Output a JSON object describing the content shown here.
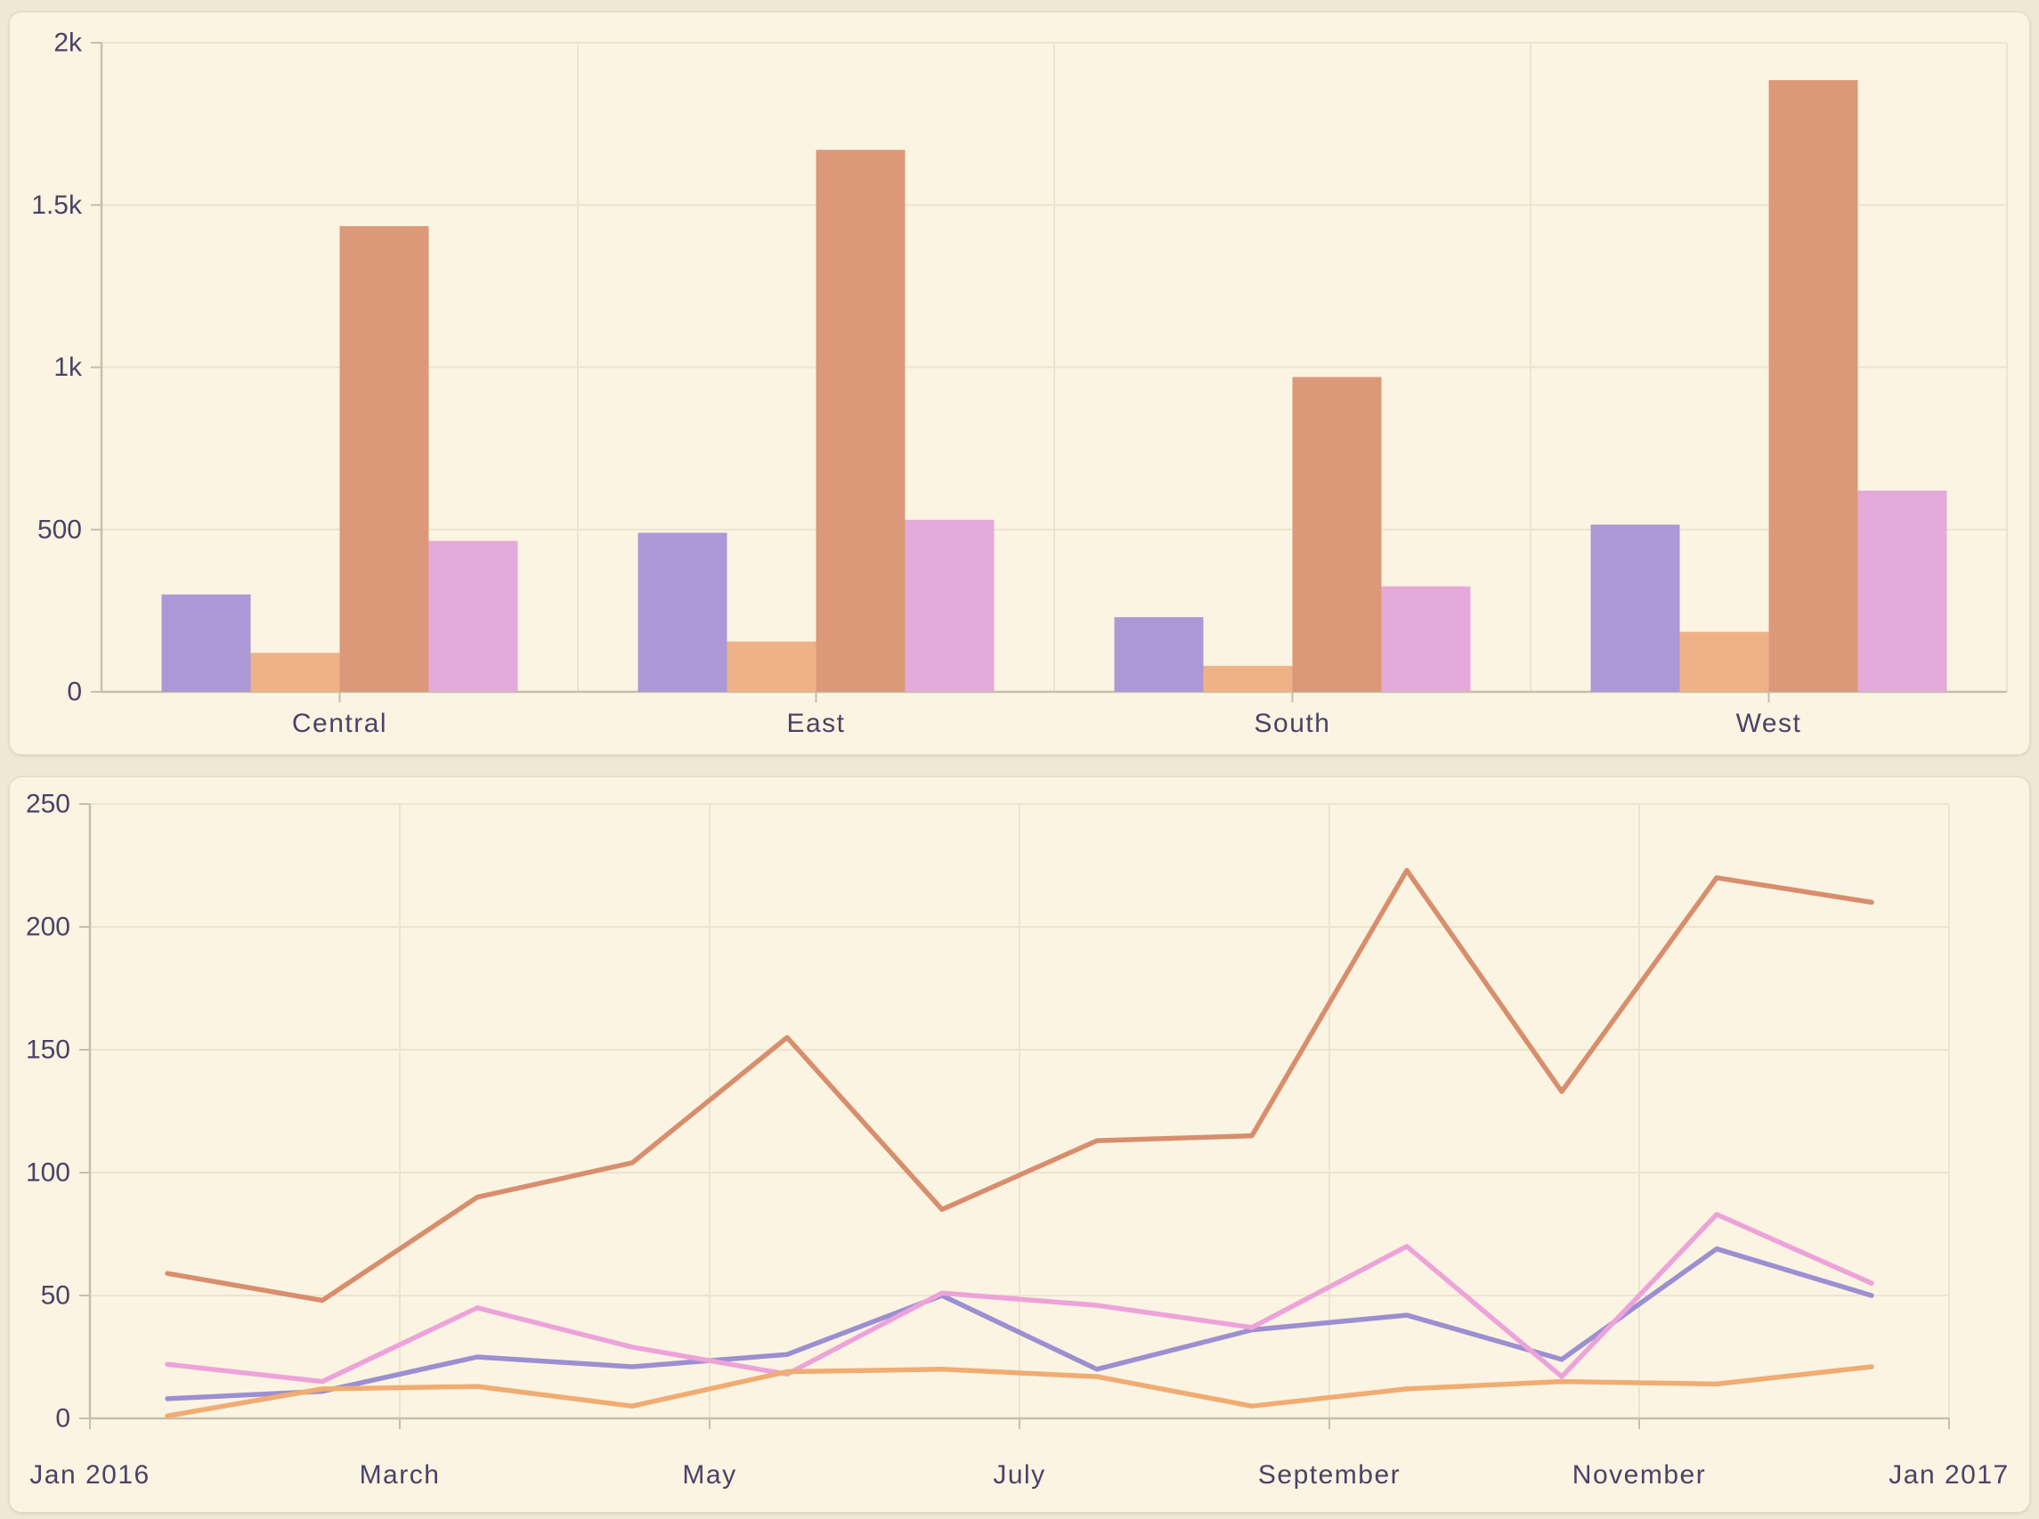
{
  "page": {
    "background_color": "#efe8d3",
    "card_background_color": "#fbf4e2",
    "gridline_color": "#ede4ce",
    "axis_color": "#c6bfaa",
    "tick_text_color": "#4b4267"
  },
  "chart_data": [
    {
      "type": "bar",
      "title": "",
      "xlabel": "",
      "ylabel": "",
      "grid": true,
      "legend": false,
      "categories": [
        "Central",
        "East",
        "South",
        "West"
      ],
      "series": [
        {
          "name": "purple",
          "color": "#ab98d5",
          "values": [
            300,
            490,
            230,
            515
          ]
        },
        {
          "name": "light-orange",
          "color": "#efb287",
          "values": [
            120,
            155,
            80,
            185
          ]
        },
        {
          "name": "salmon",
          "color": "#dc9979",
          "values": [
            1435,
            1670,
            970,
            1885
          ]
        },
        {
          "name": "pink",
          "color": "#e4aad9",
          "values": [
            465,
            530,
            325,
            620
          ]
        }
      ],
      "ylim": [
        0,
        2000
      ],
      "yticks": [
        {
          "value": 0,
          "label": "0"
        },
        {
          "value": 500,
          "label": "500"
        },
        {
          "value": 1000,
          "label": "1k"
        },
        {
          "value": 1500,
          "label": "1.5k"
        },
        {
          "value": 2000,
          "label": "2k"
        }
      ]
    },
    {
      "type": "line",
      "title": "",
      "xlabel": "",
      "ylabel": "",
      "grid": true,
      "legend": false,
      "x_range_months": 12,
      "point_offset_months": 0.5,
      "x_ticks": [
        {
          "month": 0,
          "label": "Jan 2016"
        },
        {
          "month": 2,
          "label": "March"
        },
        {
          "month": 4,
          "label": "May"
        },
        {
          "month": 6,
          "label": "July"
        },
        {
          "month": 8,
          "label": "September"
        },
        {
          "month": 10,
          "label": "November"
        },
        {
          "month": 12,
          "label": "Jan 2017"
        }
      ],
      "ylim": [
        0,
        250
      ],
      "yticks": [
        {
          "value": 0,
          "label": "0"
        },
        {
          "value": 50,
          "label": "50"
        },
        {
          "value": 100,
          "label": "100"
        },
        {
          "value": 150,
          "label": "150"
        },
        {
          "value": 200,
          "label": "200"
        },
        {
          "value": 250,
          "label": "250"
        }
      ],
      "series": [
        {
          "name": "salmon",
          "color": "#d88e6d",
          "values": [
            59,
            48,
            90,
            104,
            155,
            85,
            113,
            115,
            223,
            133,
            220,
            210
          ]
        },
        {
          "name": "purple",
          "color": "#9c8fd1",
          "values": [
            8,
            11,
            25,
            21,
            26,
            50,
            20,
            36,
            42,
            24,
            69,
            50
          ]
        },
        {
          "name": "pink",
          "color": "#eda3da",
          "values": [
            22,
            15,
            45,
            29,
            18,
            51,
            46,
            37,
            70,
            17,
            83,
            55
          ]
        },
        {
          "name": "light-orange",
          "color": "#f0ac73",
          "values": [
            1,
            12,
            13,
            5,
            19,
            20,
            17,
            5,
            12,
            15,
            14,
            21
          ]
        }
      ]
    }
  ]
}
